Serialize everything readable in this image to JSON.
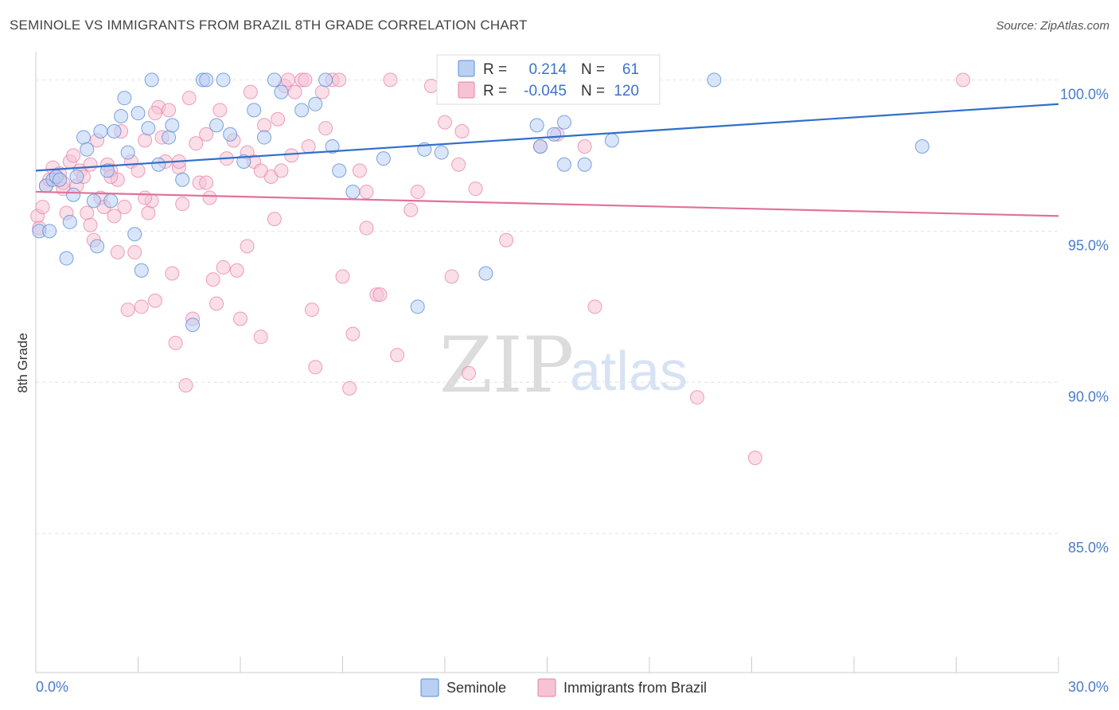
{
  "header": {
    "title": "SEMINOLE VS IMMIGRANTS FROM BRAZIL 8TH GRADE CORRELATION CHART",
    "source": "Source: ZipAtlas.com"
  },
  "watermark": {
    "zip": "ZIP",
    "atlas": "atlas"
  },
  "colors": {
    "seminole": "#5b8ed8",
    "seminole_fill": "#b9d0f2",
    "brazil": "#e882a6",
    "brazil_fill": "#f6c3d5",
    "blue_line": "#2f6fcc",
    "pink_line": "#e0709a",
    "tick_text": "#4a7cc9"
  },
  "legend": {
    "rows": [
      {
        "r_label": "R =",
        "r_value": "0.214",
        "n_label": "N =",
        "n_value": "61"
      },
      {
        "r_label": "R =",
        "r_value": "-0.045",
        "n_label": "N =",
        "n_value": "120"
      }
    ]
  },
  "chart_data": {
    "type": "scatter",
    "title": "SEMINOLE VS IMMIGRANTS FROM BRAZIL 8TH GRADE CORRELATION CHART",
    "xlabel": "",
    "ylabel": "8th Grade",
    "xlim": [
      0,
      30
    ],
    "ylim": [
      80.4,
      100.8
    ],
    "x_tick_labels": [
      "0.0%",
      "30.0%"
    ],
    "y_ticks": [
      100,
      95,
      90,
      85
    ],
    "y_tick_labels": [
      "100.0%",
      "95.0%",
      "90.0%",
      "85.0%"
    ],
    "grid": true,
    "legend_position": "top-center",
    "series": [
      {
        "name": "Seminole",
        "r": 0.214,
        "n": 61,
        "trend": {
          "x": [
            0,
            30
          ],
          "y": [
            97.0,
            99.2
          ]
        },
        "points": [
          [
            0.1,
            95.0
          ],
          [
            0.3,
            96.5
          ],
          [
            0.4,
            95.0
          ],
          [
            0.5,
            96.7
          ],
          [
            0.6,
            96.8
          ],
          [
            0.7,
            96.7
          ],
          [
            0.9,
            94.1
          ],
          [
            1.0,
            95.3
          ],
          [
            1.1,
            96.2
          ],
          [
            1.2,
            96.8
          ],
          [
            1.4,
            98.1
          ],
          [
            1.5,
            97.7
          ],
          [
            1.7,
            96.0
          ],
          [
            1.8,
            94.5
          ],
          [
            1.9,
            98.3
          ],
          [
            2.1,
            97.0
          ],
          [
            2.2,
            96.0
          ],
          [
            2.3,
            98.3
          ],
          [
            2.5,
            98.8
          ],
          [
            2.6,
            99.4
          ],
          [
            2.7,
            97.6
          ],
          [
            2.9,
            94.9
          ],
          [
            3.0,
            98.9
          ],
          [
            3.1,
            93.7
          ],
          [
            3.3,
            98.4
          ],
          [
            3.4,
            100.0
          ],
          [
            3.6,
            97.2
          ],
          [
            3.9,
            98.1
          ],
          [
            4.0,
            98.5
          ],
          [
            4.3,
            96.7
          ],
          [
            4.6,
            91.9
          ],
          [
            4.9,
            100.0
          ],
          [
            5.0,
            100.0
          ],
          [
            5.3,
            98.5
          ],
          [
            5.5,
            100.0
          ],
          [
            5.7,
            98.2
          ],
          [
            6.1,
            97.3
          ],
          [
            6.4,
            99.0
          ],
          [
            6.7,
            98.1
          ],
          [
            7.0,
            100.0
          ],
          [
            7.2,
            99.6
          ],
          [
            7.8,
            99.0
          ],
          [
            8.2,
            99.2
          ],
          [
            8.5,
            100.0
          ],
          [
            8.7,
            97.8
          ],
          [
            8.9,
            97.0
          ],
          [
            9.3,
            96.3
          ],
          [
            10.2,
            97.4
          ],
          [
            11.2,
            92.5
          ],
          [
            11.4,
            97.7
          ],
          [
            11.9,
            97.6
          ],
          [
            13.2,
            93.6
          ],
          [
            14.7,
            98.5
          ],
          [
            15.2,
            98.2
          ],
          [
            15.5,
            98.6
          ],
          [
            14.8,
            97.8
          ],
          [
            15.5,
            97.2
          ],
          [
            16.1,
            97.2
          ],
          [
            16.9,
            98.0
          ],
          [
            19.9,
            100.0
          ],
          [
            26.0,
            97.8
          ]
        ]
      },
      {
        "name": "Immigrants from Brazil",
        "r": -0.045,
        "n": 120,
        "trend": {
          "x": [
            0,
            30
          ],
          "y": [
            96.3,
            95.5
          ]
        },
        "points": [
          [
            0.05,
            95.5
          ],
          [
            0.1,
            95.1
          ],
          [
            0.2,
            95.8
          ],
          [
            0.3,
            96.5
          ],
          [
            0.4,
            96.7
          ],
          [
            0.5,
            97.1
          ],
          [
            0.6,
            96.8
          ],
          [
            0.7,
            96.9
          ],
          [
            0.8,
            96.4
          ],
          [
            0.9,
            95.6
          ],
          [
            1.0,
            97.3
          ],
          [
            1.1,
            97.5
          ],
          [
            1.2,
            96.5
          ],
          [
            1.3,
            97.0
          ],
          [
            1.4,
            96.8
          ],
          [
            1.5,
            95.6
          ],
          [
            1.6,
            95.2
          ],
          [
            1.7,
            94.7
          ],
          [
            1.8,
            98.0
          ],
          [
            1.9,
            96.1
          ],
          [
            2.0,
            95.8
          ],
          [
            2.1,
            97.2
          ],
          [
            2.2,
            97.0
          ],
          [
            2.3,
            95.5
          ],
          [
            2.4,
            96.7
          ],
          [
            2.5,
            98.3
          ],
          [
            2.6,
            95.8
          ],
          [
            2.7,
            92.4
          ],
          [
            2.8,
            97.3
          ],
          [
            2.9,
            94.3
          ],
          [
            3.0,
            97.0
          ],
          [
            3.1,
            92.5
          ],
          [
            3.2,
            98.0
          ],
          [
            3.3,
            95.6
          ],
          [
            3.4,
            96.0
          ],
          [
            3.5,
            92.7
          ],
          [
            3.6,
            99.1
          ],
          [
            3.7,
            98.1
          ],
          [
            3.8,
            97.3
          ],
          [
            3.9,
            99.0
          ],
          [
            4.0,
            93.6
          ],
          [
            4.1,
            91.3
          ],
          [
            4.2,
            97.1
          ],
          [
            4.3,
            95.9
          ],
          [
            4.4,
            89.9
          ],
          [
            4.5,
            99.4
          ],
          [
            4.6,
            92.1
          ],
          [
            4.7,
            97.9
          ],
          [
            4.8,
            96.6
          ],
          [
            5.0,
            96.6
          ],
          [
            5.1,
            96.1
          ],
          [
            5.2,
            93.4
          ],
          [
            5.3,
            92.6
          ],
          [
            5.4,
            99.0
          ],
          [
            5.5,
            93.8
          ],
          [
            5.6,
            97.4
          ],
          [
            5.8,
            98.0
          ],
          [
            5.9,
            93.7
          ],
          [
            6.0,
            92.1
          ],
          [
            6.2,
            94.5
          ],
          [
            6.3,
            99.6
          ],
          [
            6.4,
            97.3
          ],
          [
            6.6,
            91.5
          ],
          [
            6.7,
            98.5
          ],
          [
            6.9,
            96.8
          ],
          [
            7.0,
            95.4
          ],
          [
            7.1,
            98.7
          ],
          [
            7.2,
            97.0
          ],
          [
            7.3,
            99.8
          ],
          [
            7.5,
            97.5
          ],
          [
            7.6,
            99.6
          ],
          [
            7.8,
            100.0
          ],
          [
            7.9,
            100.0
          ],
          [
            8.0,
            97.8
          ],
          [
            8.1,
            92.4
          ],
          [
            8.2,
            90.5
          ],
          [
            8.5,
            98.4
          ],
          [
            8.7,
            100.0
          ],
          [
            8.9,
            100.0
          ],
          [
            9.0,
            93.5
          ],
          [
            9.2,
            89.8
          ],
          [
            9.3,
            91.6
          ],
          [
            9.5,
            97.0
          ],
          [
            9.7,
            95.1
          ],
          [
            10.0,
            92.9
          ],
          [
            10.1,
            92.9
          ],
          [
            10.4,
            100.0
          ],
          [
            10.6,
            90.9
          ],
          [
            11.0,
            95.7
          ],
          [
            11.2,
            96.3
          ],
          [
            11.6,
            99.8
          ],
          [
            12.0,
            98.6
          ],
          [
            12.2,
            93.5
          ],
          [
            12.4,
            97.2
          ],
          [
            12.5,
            98.3
          ],
          [
            12.7,
            90.3
          ],
          [
            12.9,
            96.4
          ],
          [
            13.5,
            100.0
          ],
          [
            13.8,
            94.7
          ],
          [
            14.2,
            100.0
          ],
          [
            14.8,
            97.8
          ],
          [
            15.3,
            98.2
          ],
          [
            16.1,
            97.8
          ],
          [
            16.4,
            92.5
          ],
          [
            19.4,
            89.5
          ],
          [
            21.1,
            87.5
          ],
          [
            27.2,
            100.0
          ],
          [
            6.2,
            97.6
          ],
          [
            5.0,
            98.2
          ],
          [
            4.2,
            97.3
          ],
          [
            3.2,
            96.1
          ],
          [
            2.2,
            96.8
          ],
          [
            1.6,
            97.2
          ],
          [
            0.8,
            96.6
          ],
          [
            7.4,
            100.0
          ],
          [
            8.4,
            99.6
          ],
          [
            9.7,
            96.3
          ],
          [
            3.5,
            98.9
          ],
          [
            2.4,
            94.3
          ],
          [
            6.6,
            97.0
          ]
        ]
      }
    ]
  },
  "axis": {
    "y_title": "8th Grade"
  },
  "bottom_legend": {
    "items": [
      {
        "label": "Seminole"
      },
      {
        "label": "Immigrants from Brazil"
      }
    ]
  }
}
